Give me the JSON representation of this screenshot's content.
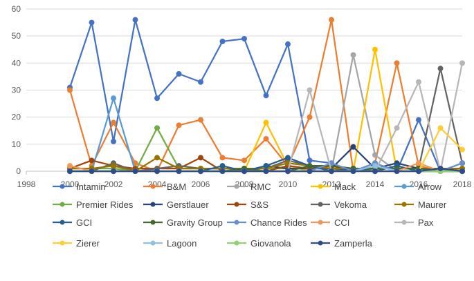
{
  "chart_data": {
    "type": "line",
    "title": "",
    "xlabel": "",
    "ylabel": "",
    "xlim": [
      1998,
      2018
    ],
    "ylim": [
      0,
      60
    ],
    "x_ticks": [
      "1998",
      "2000",
      "2002",
      "2004",
      "2006",
      "2008",
      "2010",
      "2012",
      "2014",
      "2016",
      "2018"
    ],
    "y_ticks": [
      "0",
      "10",
      "20",
      "30",
      "40",
      "50",
      "60"
    ],
    "grid": "horizontal",
    "legend_position": "bottom",
    "x": [
      2000,
      2001,
      2002,
      2003,
      2004,
      2005,
      2006,
      2007,
      2008,
      2009,
      2010,
      2011,
      2012,
      2013,
      2014,
      2015,
      2016,
      2017,
      2018
    ],
    "series": [
      {
        "name": "Intamin",
        "color": "#4472C4",
        "values": [
          31,
          55,
          11,
          56,
          27,
          36,
          33,
          48,
          49,
          28,
          47,
          4,
          3,
          0,
          3,
          0,
          19,
          0,
          3
        ]
      },
      {
        "name": "B&M",
        "color": "#ED7D31",
        "values": [
          30,
          2,
          18,
          3,
          0,
          17,
          19,
          5,
          4,
          12,
          2,
          20,
          56,
          0,
          3,
          40,
          2,
          0,
          1
        ]
      },
      {
        "name": "RMC",
        "color": "#A5A5A5",
        "values": [
          0,
          0,
          0,
          0,
          0,
          0,
          0,
          0,
          0,
          0,
          0,
          0,
          0,
          43,
          6,
          0,
          0,
          0,
          0
        ]
      },
      {
        "name": "Mack",
        "color": "#FFC000",
        "values": [
          0,
          0,
          0,
          0,
          0,
          0,
          0,
          0,
          0,
          18,
          2,
          0,
          0,
          0,
          45,
          0,
          0,
          0,
          0
        ]
      },
      {
        "name": "Arrow",
        "color": "#5B9BD5",
        "values": [
          0,
          0,
          27,
          0,
          0,
          0,
          0,
          0,
          0,
          0,
          0,
          0,
          0,
          0,
          0,
          0,
          0,
          0,
          0
        ]
      },
      {
        "name": "Premier Rides",
        "color": "#70AD47",
        "values": [
          1,
          1,
          1,
          0,
          16,
          1,
          1,
          1,
          1,
          1,
          1,
          1,
          1,
          1,
          1,
          1,
          1,
          1,
          1
        ]
      },
      {
        "name": "Gerstlauer",
        "color": "#264478",
        "values": [
          0,
          0,
          0,
          0,
          0,
          0,
          0,
          0,
          0,
          2,
          1,
          1,
          1,
          9,
          1,
          3,
          1,
          1,
          0
        ]
      },
      {
        "name": "S&S",
        "color": "#9E480E",
        "values": [
          1,
          4,
          2,
          1,
          1,
          1,
          5,
          0,
          0,
          0,
          2,
          1,
          2,
          0,
          0,
          0,
          0,
          0,
          0
        ]
      },
      {
        "name": "Vekoma",
        "color": "#636363",
        "values": [
          0,
          0,
          3,
          0,
          1,
          2,
          1,
          1,
          1,
          1,
          4,
          2,
          1,
          0,
          1,
          1,
          1,
          38,
          3
        ]
      },
      {
        "name": "Maurer",
        "color": "#997300",
        "values": [
          1,
          1,
          2,
          0,
          5,
          1,
          1,
          1,
          1,
          1,
          3,
          2,
          1,
          1,
          1,
          1,
          1,
          1,
          1
        ]
      },
      {
        "name": "GCI",
        "color": "#255E91",
        "values": [
          0,
          0,
          0,
          0,
          0,
          0,
          0,
          2,
          0,
          2,
          5,
          2,
          0,
          1,
          0,
          2,
          0,
          0,
          0
        ]
      },
      {
        "name": "Gravity Group",
        "color": "#43682B",
        "values": [
          0,
          0,
          0,
          0,
          0,
          0,
          0,
          0,
          1,
          0,
          0,
          2,
          2,
          1,
          1,
          1,
          1,
          0,
          0
        ]
      },
      {
        "name": "Chance Rides",
        "color": "#698ED0",
        "values": [
          0,
          0,
          0,
          0,
          0,
          0,
          0,
          0,
          0,
          0,
          0,
          0,
          3,
          0,
          3,
          0,
          0,
          0,
          3
        ]
      },
      {
        "name": "CCI",
        "color": "#F1975A",
        "values": [
          2,
          0,
          0,
          0,
          0,
          0,
          0,
          0,
          0,
          0,
          0,
          0,
          0,
          0,
          0,
          0,
          3,
          0,
          0
        ]
      },
      {
        "name": "Pax",
        "color": "#B7B7B7",
        "values": [
          0,
          0,
          0,
          0,
          0,
          0,
          0,
          0,
          0,
          0,
          0,
          30,
          0,
          0,
          0,
          16,
          33,
          0,
          40
        ]
      },
      {
        "name": "Zierer",
        "color": "#FFCD33",
        "values": [
          0,
          0,
          0,
          0,
          0,
          0,
          0,
          0,
          0,
          0,
          0,
          0,
          0,
          0,
          0,
          0,
          0,
          16,
          8
        ]
      },
      {
        "name": "Lagoon",
        "color": "#8CC1E5",
        "values": [
          0,
          0,
          0,
          0,
          0,
          0,
          0,
          0,
          0,
          0,
          0,
          0,
          0,
          0,
          2,
          0,
          0,
          0,
          0
        ]
      },
      {
        "name": "Giovanola",
        "color": "#8FD16A",
        "values": [
          0,
          0,
          0,
          0,
          0,
          0,
          0,
          0,
          0,
          0,
          0,
          0,
          0,
          0,
          0,
          0,
          0,
          0,
          0
        ]
      },
      {
        "name": "Zamperla",
        "color": "#2F4C8F",
        "values": [
          0,
          0,
          0,
          0,
          0,
          0,
          0,
          0,
          0,
          0,
          0,
          0,
          0,
          0,
          0,
          0,
          0,
          1,
          0
        ]
      }
    ]
  }
}
